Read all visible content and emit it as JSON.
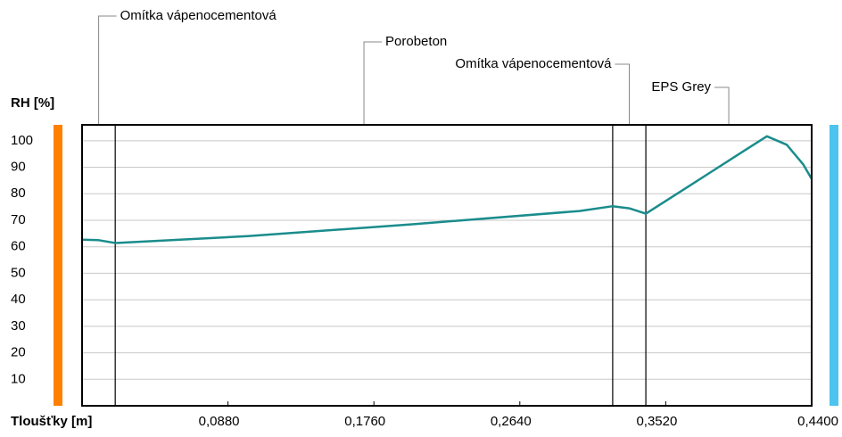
{
  "chart_data": {
    "type": "line",
    "ylabel": "RH [%]",
    "xlabel": "Tloušťky [m]",
    "xlim": [
      0,
      0.44
    ],
    "ylim": [
      0,
      106
    ],
    "yticks": [
      10,
      20,
      30,
      40,
      50,
      60,
      70,
      80,
      90,
      100
    ],
    "xticks": [
      {
        "value": 0.088,
        "label": "0,0880"
      },
      {
        "value": 0.176,
        "label": "0,1760"
      },
      {
        "value": 0.264,
        "label": "0,2640"
      },
      {
        "value": 0.352,
        "label": "0,3520"
      },
      {
        "value": 0.44,
        "label": "0,4400"
      }
    ],
    "grid": true,
    "layers": [
      {
        "name": "Omítka vápenocementová",
        "from": 0,
        "to": 0.02
      },
      {
        "name": "Porobeton",
        "from": 0.02,
        "to": 0.32
      },
      {
        "name": "Omítka vápenocementová",
        "from": 0.32,
        "to": 0.34
      },
      {
        "name": "EPS Grey",
        "from": 0.34,
        "to": 0.44
      }
    ],
    "series": [
      {
        "color": "#1a8c8c",
        "x": [
          0,
          0.01,
          0.02,
          0.1,
          0.2,
          0.3,
          0.32,
          0.33,
          0.34,
          0.36,
          0.38,
          0.4,
          0.413,
          0.425,
          0.435,
          0.44
        ],
        "values": [
          62.7,
          62.5,
          61.4,
          64,
          68.5,
          73.5,
          75.3,
          74.5,
          72.5,
          80.5,
          88.5,
          96.5,
          101.7,
          98.5,
          91,
          85.6
        ]
      }
    ]
  }
}
